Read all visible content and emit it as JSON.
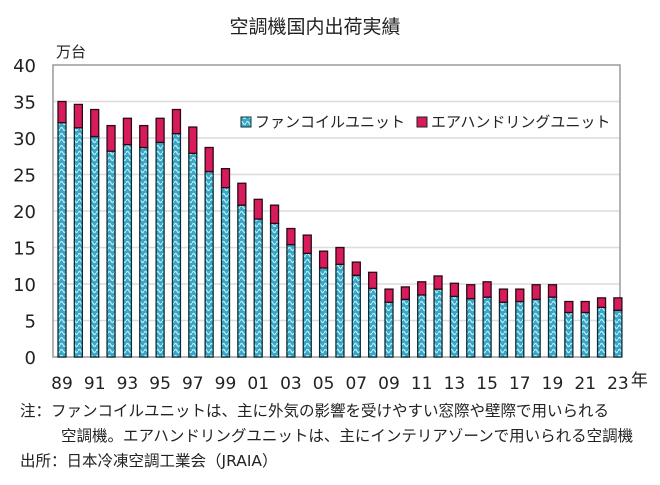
{
  "chart_data": {
    "type": "bar",
    "stacked": true,
    "title": "空調機国内出荷実績",
    "ylabel": "万台",
    "xlabel": "年",
    "ylim": [
      0,
      40
    ],
    "yticks": [
      0,
      5,
      10,
      15,
      20,
      25,
      30,
      35,
      40
    ],
    "grid": true,
    "legend_position": "top-right",
    "categories": [
      "1989",
      "1990",
      "1991",
      "1992",
      "1993",
      "1994",
      "1995",
      "1996",
      "1997",
      "1998",
      "1999",
      "2000",
      "2001",
      "2002",
      "2003",
      "2004",
      "2005",
      "2006",
      "2007",
      "2008",
      "2009",
      "2010",
      "2011",
      "2012",
      "2013",
      "2014",
      "2015",
      "2016",
      "2017",
      "2018",
      "2019",
      "2020",
      "2021",
      "2022",
      "2023"
    ],
    "xtick_labels": [
      "89",
      "91",
      "93",
      "95",
      "97",
      "99",
      "01",
      "03",
      "05",
      "07",
      "09",
      "11",
      "13",
      "15",
      "17",
      "19",
      "21",
      "23"
    ],
    "xtick_suffix": "年",
    "series": [
      {
        "name": "ファンコイルユニット",
        "color": "#3aa7c4",
        "pattern": "hatched-light-blue",
        "values": [
          32.1,
          31.4,
          30.2,
          28.2,
          29.1,
          28.7,
          29.4,
          30.6,
          27.9,
          25.4,
          23.2,
          20.8,
          18.9,
          18.3,
          15.4,
          14.2,
          12.2,
          12.7,
          11.2,
          9.4,
          7.5,
          7.9,
          8.5,
          9.3,
          8.3,
          8.0,
          8.2,
          7.5,
          7.6,
          7.9,
          8.2,
          6.1,
          6.1,
          6.8,
          6.4
        ]
      },
      {
        "name": "エアハンドリングユニット",
        "color": "#d81b5a",
        "values": [
          2.9,
          3.2,
          3.7,
          3.5,
          3.6,
          3.0,
          3.3,
          3.3,
          3.6,
          3.3,
          2.6,
          3.0,
          2.7,
          2.5,
          2.2,
          2.5,
          2.3,
          2.3,
          1.8,
          2.2,
          1.8,
          1.7,
          1.8,
          1.8,
          1.8,
          1.9,
          2.1,
          1.8,
          1.7,
          2.0,
          1.7,
          1.5,
          1.5,
          1.3,
          1.7
        ]
      }
    ]
  },
  "notes": {
    "note_line1": "注：ファンコイルユニットは、主に外気の影響を受けやすい窓際や壁際で用いられる",
    "note_line2": "空調機。エアハンドリングユニットは、主にインテリアゾーンで用いられる空調機",
    "source": "出所：日本冷凍空調工業会（JRAIA）"
  }
}
